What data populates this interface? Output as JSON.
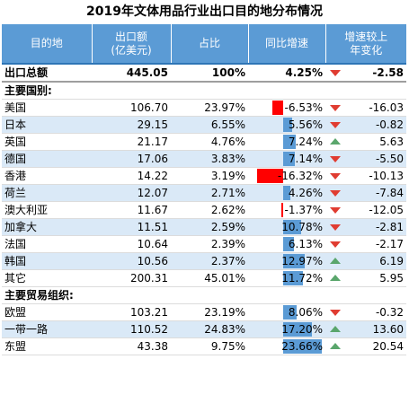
{
  "title": "2019年文体用品行业出口目的地分布情况",
  "headers": {
    "dest": "目的地",
    "amount_l1": "出口额",
    "amount_l2": "(亿美元)",
    "share": "占比",
    "yoy": "同比增速",
    "change_l1": "增速较上",
    "change_l2": "年变化"
  },
  "colors": {
    "header_bg": "#5b9bd5",
    "band": "#dae9f7",
    "bar_pos": "#5b9bd5",
    "bar_neg": "#ff0000",
    "arrow_down": "#e03c31",
    "arrow_up": "#5aa66c"
  },
  "yoy_axis": {
    "min": -20,
    "max": 24
  },
  "total": {
    "name": "出口总额",
    "amount": "445.05",
    "share": "100%",
    "yoy": "4.25%",
    "yoy_value": 4.25,
    "change": "-2.58",
    "dir": "down"
  },
  "section_country": "主要国别:",
  "countries": [
    {
      "name": "美国",
      "amount": "106.70",
      "share": "23.97%",
      "yoy": "-6.53%",
      "yoy_value": -6.53,
      "change": "-16.03",
      "dir": "down"
    },
    {
      "name": "日本",
      "amount": "29.15",
      "share": "6.55%",
      "yoy": "5.56%",
      "yoy_value": 5.56,
      "change": "-0.82",
      "dir": "down"
    },
    {
      "name": "英国",
      "amount": "21.17",
      "share": "4.76%",
      "yoy": "7.24%",
      "yoy_value": 7.24,
      "change": "5.63",
      "dir": "up"
    },
    {
      "name": "德国",
      "amount": "17.06",
      "share": "3.83%",
      "yoy": "7.14%",
      "yoy_value": 7.14,
      "change": "-5.50",
      "dir": "down"
    },
    {
      "name": "香港",
      "amount": "14.22",
      "share": "3.19%",
      "yoy": "-16.32%",
      "yoy_value": -16.32,
      "change": "-10.13",
      "dir": "down"
    },
    {
      "name": "荷兰",
      "amount": "12.07",
      "share": "2.71%",
      "yoy": "4.26%",
      "yoy_value": 4.26,
      "change": "-7.84",
      "dir": "down"
    },
    {
      "name": "澳大利亚",
      "amount": "11.67",
      "share": "2.62%",
      "yoy": "-1.37%",
      "yoy_value": -1.37,
      "change": "-12.05",
      "dir": "down"
    },
    {
      "name": "加拿大",
      "amount": "11.51",
      "share": "2.59%",
      "yoy": "10.78%",
      "yoy_value": 10.78,
      "change": "-2.81",
      "dir": "down"
    },
    {
      "name": "法国",
      "amount": "10.64",
      "share": "2.39%",
      "yoy": "6.13%",
      "yoy_value": 6.13,
      "change": "-2.17",
      "dir": "down"
    },
    {
      "name": "韩国",
      "amount": "10.56",
      "share": "2.37%",
      "yoy": "12.97%",
      "yoy_value": 12.97,
      "change": "6.19",
      "dir": "up"
    },
    {
      "name": "其它",
      "amount": "200.31",
      "share": "45.01%",
      "yoy": "11.72%",
      "yoy_value": 11.72,
      "change": "5.95",
      "dir": "up"
    }
  ],
  "section_trade": "主要贸易组织:",
  "trade_orgs": [
    {
      "name": "欧盟",
      "amount": "103.21",
      "share": "23.19%",
      "yoy": "8.06%",
      "yoy_value": 8.06,
      "change": "-0.32",
      "dir": "down"
    },
    {
      "name": "一带一路",
      "amount": "110.52",
      "share": "24.83%",
      "yoy": "17.20%",
      "yoy_value": 17.2,
      "change": "13.60",
      "dir": "up"
    },
    {
      "name": "东盟",
      "amount": "43.38",
      "share": "9.75%",
      "yoy": "23.66%",
      "yoy_value": 23.66,
      "change": "20.54",
      "dir": "up"
    }
  ]
}
